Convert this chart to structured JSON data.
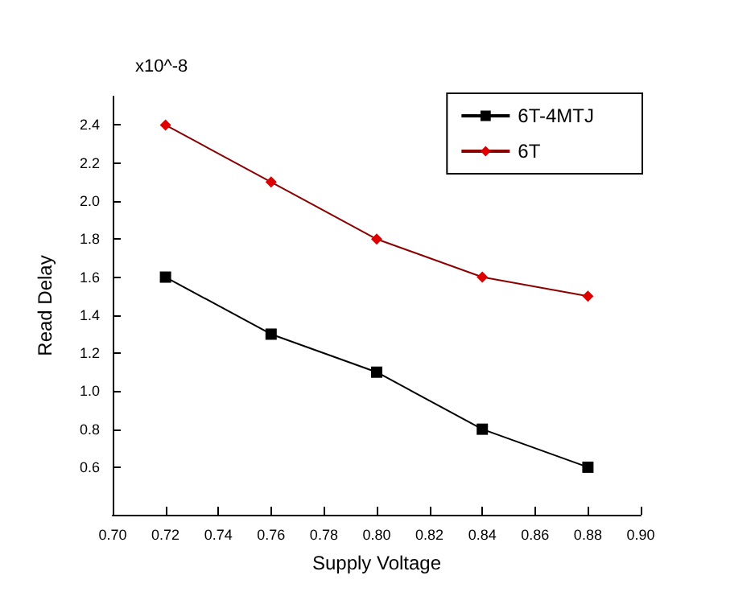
{
  "chart_data": {
    "type": "line",
    "xlabel": "Supply Voltage",
    "ylabel": "Read Delay",
    "annotations": [
      "x10^-8"
    ],
    "x": [
      0.72,
      0.76,
      0.8,
      0.84,
      0.88
    ],
    "series": [
      {
        "name": "6T-4MTJ",
        "color": "#000000",
        "marker": "square",
        "values": [
          1.6,
          1.3,
          1.1,
          0.8,
          0.6
        ]
      },
      {
        "name": "6T",
        "color": "#8b0000",
        "marker": "diamond",
        "values": [
          2.4,
          2.1,
          1.8,
          1.6,
          1.5
        ]
      }
    ],
    "xlim": [
      0.7,
      0.9
    ],
    "xticks": [
      {
        "value": 0.7,
        "label": "0.70"
      },
      {
        "value": 0.72,
        "label": "0.72"
      },
      {
        "value": 0.74,
        "label": "0.74"
      },
      {
        "value": 0.76,
        "label": "0.76"
      },
      {
        "value": 0.78,
        "label": "0.78"
      },
      {
        "value": 0.8,
        "label": "0.80"
      },
      {
        "value": 0.82,
        "label": "0.82"
      },
      {
        "value": 0.84,
        "label": "0.84"
      },
      {
        "value": 0.86,
        "label": "0.86"
      },
      {
        "value": 0.88,
        "label": "0.88"
      },
      {
        "value": 0.9,
        "label": "0.90"
      }
    ],
    "ylim": [
      0.35,
      2.55
    ],
    "yticks": [
      0.6,
      0.8,
      {
        "value": 1.0,
        "label": "1.0"
      },
      1.2,
      1.4,
      1.6,
      1.8,
      {
        "value": 2.0,
        "label": "2.0"
      },
      2.2,
      2.4
    ],
    "grid": false,
    "legend": "top right",
    "line_style": "solid"
  }
}
